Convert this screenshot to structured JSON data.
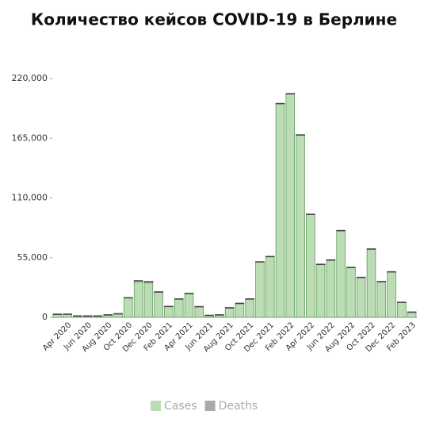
{
  "chart_data": {
    "type": "bar",
    "stacked": true,
    "title": "Количество кейсов COVID-19 в Берлине",
    "categories": [
      null,
      "Apr 2020",
      null,
      "Jun 2020",
      null,
      "Aug 2020",
      null,
      "Oct 2020",
      null,
      "Dec 2020",
      null,
      "Feb 2021",
      null,
      "Apr 2021",
      null,
      "Jun 2021",
      null,
      "Aug 2021",
      null,
      "Oct 2021",
      null,
      "Dec 2021",
      null,
      "Feb 2022",
      null,
      "Apr 2022",
      null,
      "Jun 2022",
      null,
      "Aug 2022",
      null,
      "Oct 2022",
      null,
      "Dec 2022",
      null,
      "Feb 2023"
    ],
    "series": [
      {
        "name": "Cases",
        "color": "#bcdcb6",
        "stroke": "#5c9c56",
        "values": [
          3000,
          3000,
          1500,
          1500,
          1500,
          2500,
          3500,
          18000,
          33000,
          32000,
          23000,
          10000,
          17000,
          22000,
          10000,
          2000,
          2500,
          9000,
          13000,
          17000,
          51000,
          56000,
          197000,
          206000,
          168000,
          95000,
          49000,
          53000,
          80000,
          46000,
          37000,
          63000,
          33000,
          42000,
          14000,
          5000
        ]
      },
      {
        "name": "Deaths",
        "color": "#aaaaaa",
        "stroke": "#444444",
        "values": [
          100,
          200,
          50,
          20,
          10,
          10,
          50,
          300,
          900,
          1200,
          700,
          300,
          200,
          300,
          100,
          50,
          20,
          50,
          100,
          200,
          400,
          300,
          200,
          300,
          300,
          200,
          100,
          100,
          200,
          200,
          100,
          200,
          200,
          200,
          100,
          50
        ]
      }
    ],
    "ylim": [
      0,
      220000
    ],
    "yticks": [
      0,
      {
        "value": 55000,
        "label": "55,000"
      },
      {
        "value": 110000,
        "label": "110,000"
      },
      {
        "value": 165000,
        "label": "165,000"
      },
      {
        "value": 220000,
        "label": "220,000"
      }
    ],
    "legend": "bottom"
  }
}
